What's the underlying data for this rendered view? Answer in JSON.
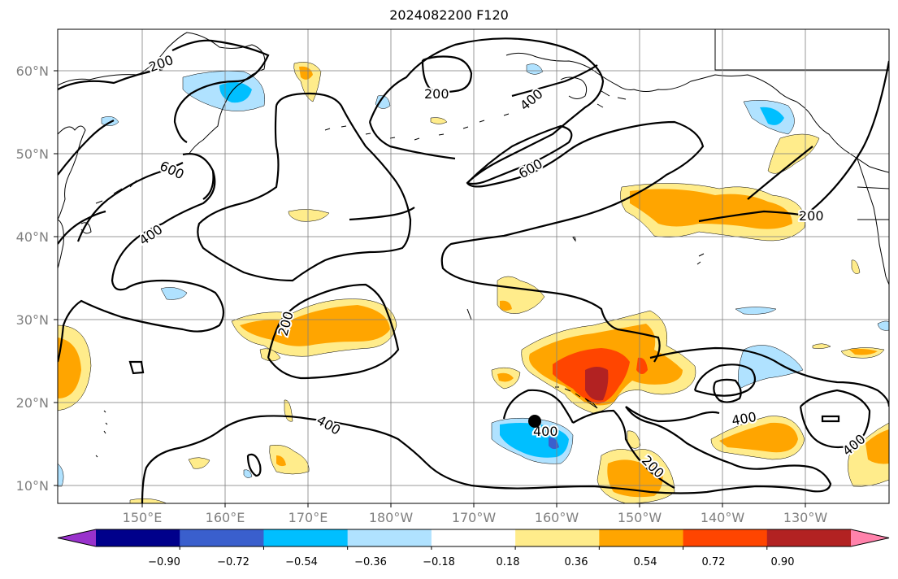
{
  "title": "2024082200 F120",
  "lon_ticks": [
    "150°E",
    "160°E",
    "170°E",
    "180°W",
    "170°W",
    "160°W",
    "150°W",
    "140°W",
    "130°W"
  ],
  "lat_ticks": [
    "60°N",
    "50°N",
    "40°N",
    "30°N",
    "20°N",
    "10°N"
  ],
  "colorbar": {
    "colors": [
      "#9932cc",
      "#00008b",
      "#3a5fcd",
      "#00bfff",
      "#b0e2ff",
      "#ffffff",
      "#ffec8b",
      "#ffa500",
      "#ff4500",
      "#b22222",
      "#ff82ab"
    ],
    "tick_labels": [
      "−0.90",
      "−0.72",
      "−0.54",
      "−0.36",
      "−0.18",
      "0.18",
      "0.36",
      "0.54",
      "0.72",
      "0.90"
    ]
  },
  "contour_labels": [
    "200",
    "200",
    "400",
    "600",
    "600",
    "400",
    "200",
    "200",
    "400",
    "400",
    "400",
    "200",
    "400"
  ]
}
